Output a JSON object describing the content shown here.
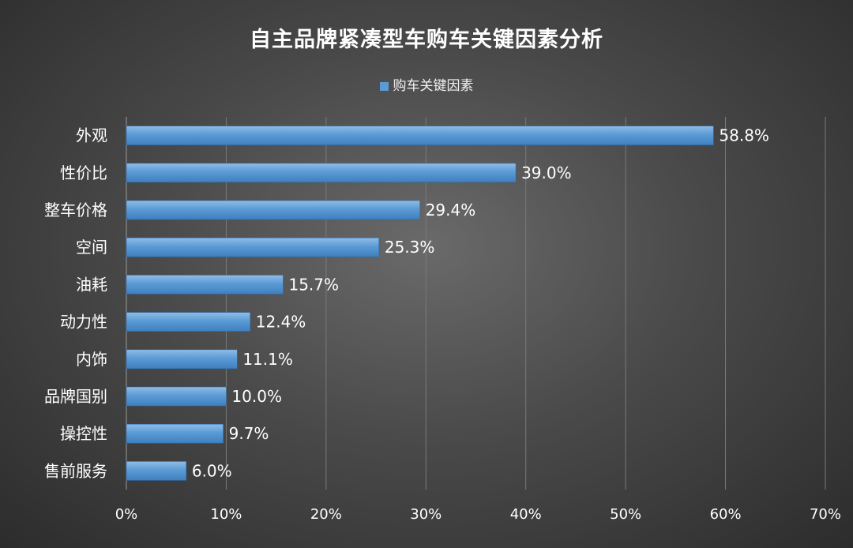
{
  "chart_data": {
    "type": "bar",
    "orientation": "horizontal",
    "title": "自主品牌紧凑型车购车关键因素分析",
    "legend": {
      "position": "top",
      "label": "购车关键因素"
    },
    "categories": [
      "外观",
      "性价比",
      "整车价格",
      "空间",
      "油耗",
      "动力性",
      "内饰",
      "品牌国别",
      "操控性",
      "售前服务"
    ],
    "series": [
      {
        "name": "购车关键因素",
        "values": [
          58.8,
          39.0,
          29.4,
          25.3,
          15.7,
          12.4,
          11.1,
          10.0,
          9.7,
          6.0
        ],
        "labels": [
          "58.8%",
          "39.0%",
          "29.4%",
          "25.3%",
          "15.7%",
          "12.4%",
          "11.1%",
          "10.0%",
          "9.7%",
          "6.0%"
        ]
      }
    ],
    "x_ticks": [
      "0%",
      "10%",
      "20%",
      "30%",
      "40%",
      "50%",
      "60%",
      "70%"
    ],
    "xlim": [
      0,
      70
    ],
    "grid": true,
    "bar_color": "#5b9bd5",
    "grid_color": "#7a7a7a"
  }
}
